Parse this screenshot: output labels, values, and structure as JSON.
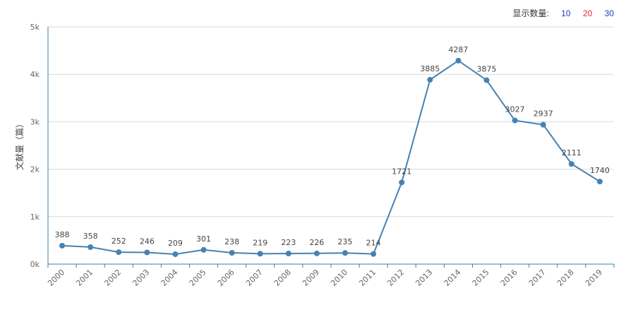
{
  "toolbar": {
    "label": "显示数量:",
    "options": [
      {
        "label": "10",
        "color": "#1f3bb3"
      },
      {
        "label": "20",
        "color": "#e0302a"
      },
      {
        "label": "30",
        "color": "#1f3bb3"
      }
    ]
  },
  "chart_data": {
    "type": "line",
    "ylabel": "文献量（篇）",
    "ylim": [
      0,
      5000
    ],
    "yticks": [
      {
        "value": 0,
        "label": "0k"
      },
      {
        "value": 1000,
        "label": "1k"
      },
      {
        "value": 2000,
        "label": "2k"
      },
      {
        "value": 3000,
        "label": "3k"
      },
      {
        "value": 4000,
        "label": "4k"
      },
      {
        "value": 5000,
        "label": "5k"
      }
    ],
    "grid": true,
    "line_color": "#4682b4",
    "x": [
      "2000",
      "2001",
      "2002",
      "2003",
      "2004",
      "2005",
      "2006",
      "2007",
      "2008",
      "2009",
      "2010",
      "2011",
      "2012",
      "2013",
      "2014",
      "2015",
      "2016",
      "2017",
      "2018",
      "2019"
    ],
    "values": [
      388,
      358,
      252,
      246,
      209,
      301,
      238,
      219,
      223,
      226,
      235,
      214,
      1721,
      3885,
      4287,
      3875,
      3027,
      2937,
      2111,
      1740
    ]
  }
}
